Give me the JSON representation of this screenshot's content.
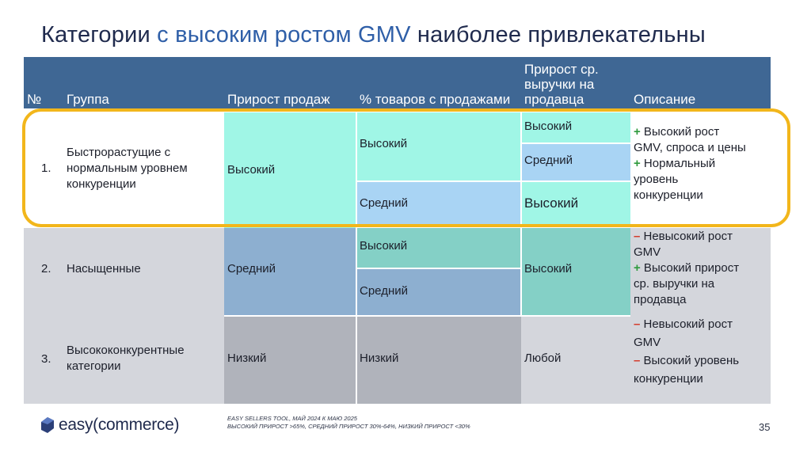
{
  "title": {
    "part1": "Категории ",
    "accent": "с высоким ростом GMV",
    "part2": " наиболее привлекательны"
  },
  "headers": {
    "num": "№",
    "group": "Группа",
    "sales_growth": "Прирост продаж",
    "pct_goods": "% товаров с продажами",
    "rev_growth": "Прирост ср. выручки на продавца",
    "description": "Описание"
  },
  "rows": [
    {
      "num": "1.",
      "group": "Быстрорастущие с нормальным уровнем конкуренции",
      "sales_growth": "Высокий",
      "pct_goods": [
        "Высокий",
        "Средний"
      ],
      "rev_growth": [
        "Высокий",
        "Средний",
        "Высокий"
      ],
      "description": [
        {
          "sign": "+",
          "text": " Высокий рост"
        },
        {
          "sign": "",
          "text": "GMV, спроса и цены"
        },
        {
          "sign": "+",
          "text": " Нормальный"
        },
        {
          "sign": "",
          "text": "уровень"
        },
        {
          "sign": "",
          "text": "конкуренции"
        }
      ]
    },
    {
      "num": "2.",
      "group": "Насыщенные",
      "sales_growth": "Средний",
      "pct_goods": [
        "Высокий",
        "Средний"
      ],
      "rev_growth": [
        "Высокий"
      ],
      "description": [
        {
          "sign": "–",
          "text": " Невысокий рост"
        },
        {
          "sign": "",
          "text": "GMV"
        },
        {
          "sign": "+",
          "text": " Высокий прирост"
        },
        {
          "sign": "",
          "text": "ср. выручки на"
        },
        {
          "sign": "",
          "text": "продавца"
        }
      ]
    },
    {
      "num": "3.",
      "group": "Высококонкурентные категории",
      "sales_growth": "Низкий",
      "pct_goods": [
        "Низкий"
      ],
      "rev_growth": [
        "Любой"
      ],
      "description": [
        {
          "sign": "–",
          "text": " Невысокий рост"
        },
        {
          "sign": "",
          "text": "GMV"
        },
        {
          "sign": "–",
          "text": " Высокий уровень"
        },
        {
          "sign": "",
          "text": "конкуренции"
        }
      ]
    }
  ],
  "footer": {
    "logo_text": "easy(commerce)",
    "source_line1": "EASY SELLERS TOOL, МАЙ 2024 К МАЮ 2025",
    "source_line2": "ВЫСОКИЙ ПРИРОСТ >65%, СРЕДНИЙ ПРИРОСТ 30%-64%, НИЗКИЙ ПРИРОСТ <30%",
    "page": "35"
  },
  "colors": {
    "header": "#3f6794",
    "mint": "#a0f6e6",
    "light_blue": "#a9d4f4",
    "row_gray": "#d4d6dc",
    "mid_blue": "#8dafd0",
    "teal": "#84d0c6",
    "dark_gray": "#b0b3bb",
    "highlight": "#f2b61b"
  }
}
